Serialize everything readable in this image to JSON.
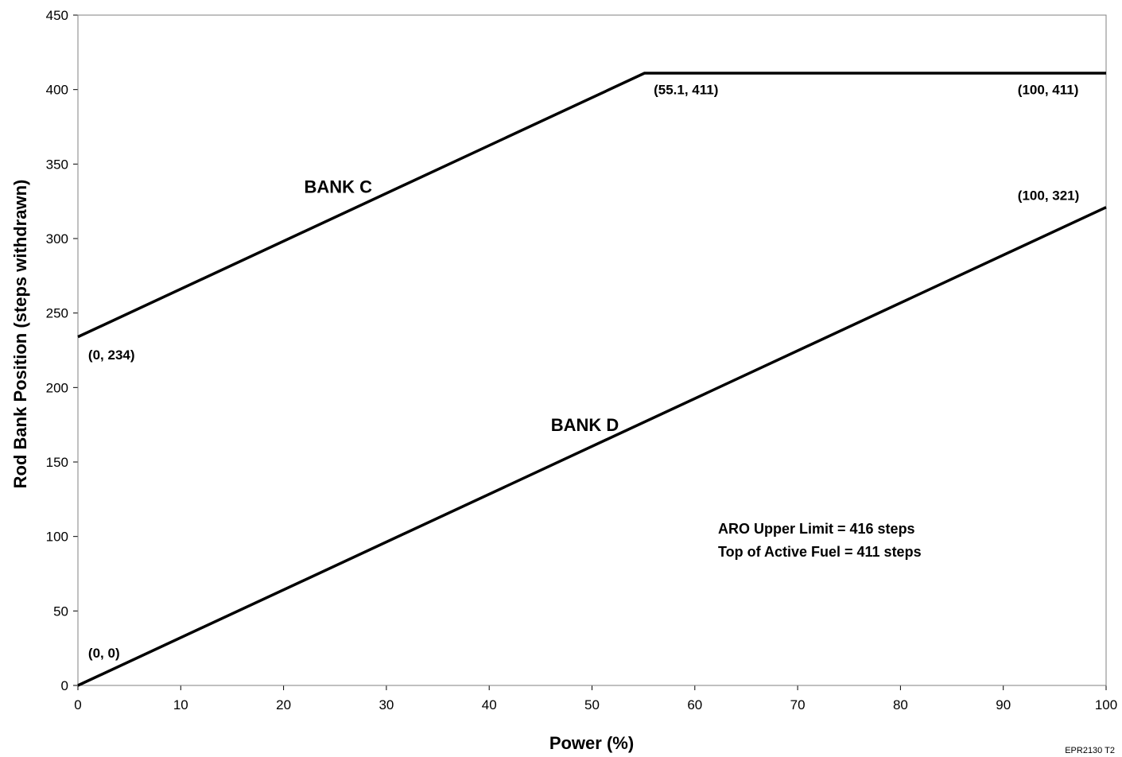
{
  "chart_data": {
    "type": "line",
    "xlabel": "Power (%)",
    "ylabel": "Rod Bank Position (steps withdrawn)",
    "xlim": [
      0,
      100
    ],
    "ylim": [
      0,
      450
    ],
    "xticks": [
      0,
      10,
      20,
      30,
      40,
      50,
      60,
      70,
      80,
      90,
      100
    ],
    "yticks": [
      0,
      50,
      100,
      150,
      200,
      250,
      300,
      350,
      400,
      450
    ],
    "grid": false,
    "legend": "none",
    "line_color": "#000000",
    "series": [
      {
        "name": "BANK C",
        "x": [
          0,
          55.1,
          100
        ],
        "y": [
          234,
          411,
          411
        ]
      },
      {
        "name": "BANK D",
        "x": [
          0,
          100
        ],
        "y": [
          0,
          321
        ]
      }
    ],
    "series_labels": [
      {
        "text": "BANK C",
        "x": 22,
        "y": 335
      },
      {
        "text": "BANK D",
        "x": 46,
        "y": 175
      }
    ],
    "point_annotations": [
      {
        "text": "(55.1, 411)",
        "x": 56,
        "y": 400
      },
      {
        "text": "(100, 411)",
        "x": 91.4,
        "y": 400
      },
      {
        "text": "(100, 321)",
        "x": 91.4,
        "y": 329
      },
      {
        "text": "(0, 234)",
        "x": 1,
        "y": 222
      },
      {
        "text": "(0, 0)",
        "x": 1,
        "y": 22
      }
    ],
    "notes": [
      "ARO Upper Limit = 416 steps",
      "Top of Active Fuel = 411 steps"
    ],
    "code": "EPR2130 T2"
  }
}
